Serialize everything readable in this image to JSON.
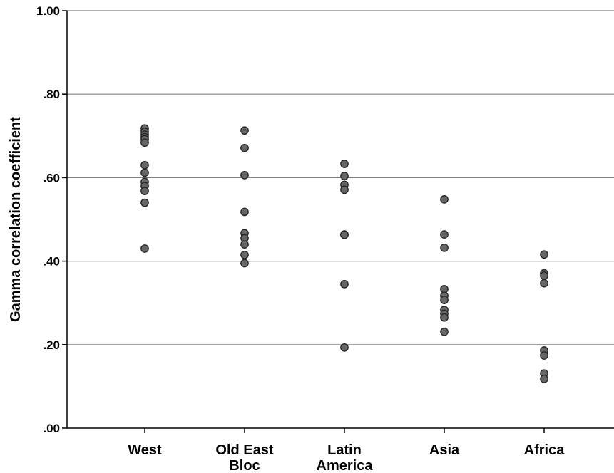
{
  "chart_data": {
    "type": "scatter",
    "title": "",
    "xlabel": "",
    "ylabel": "Gamma correlation coefficient",
    "ylim": [
      0,
      1
    ],
    "yticks": [
      0,
      0.2,
      0.4,
      0.6,
      0.8,
      1.0
    ],
    "ytick_labels": [
      ".00",
      ".20",
      ".40",
      ".60",
      ".80",
      "1.00"
    ],
    "grid": "horizontal",
    "legend": "none",
    "marker_color": "#666666",
    "categories": [
      {
        "label_lines": [
          "West"
        ],
        "values": [
          0.718,
          0.71,
          0.703,
          0.697,
          0.692,
          0.684,
          0.63,
          0.612,
          0.59,
          0.58,
          0.568,
          0.54,
          0.43
        ]
      },
      {
        "label_lines": [
          "Old East",
          "Bloc"
        ],
        "values": [
          0.713,
          0.671,
          0.606,
          0.518,
          0.467,
          0.455,
          0.44,
          0.415,
          0.395
        ]
      },
      {
        "label_lines": [
          "Latin",
          "America"
        ],
        "values": [
          0.633,
          0.604,
          0.583,
          0.571,
          0.464,
          0.463,
          0.345,
          0.193
        ]
      },
      {
        "label_lines": [
          "Asia"
        ],
        "values": [
          0.548,
          0.464,
          0.432,
          0.333,
          0.317,
          0.307,
          0.283,
          0.274,
          0.265,
          0.231
        ]
      },
      {
        "label_lines": [
          "Africa"
        ],
        "values": [
          0.416,
          0.371,
          0.365,
          0.347,
          0.186,
          0.174,
          0.131,
          0.118
        ]
      }
    ]
  }
}
